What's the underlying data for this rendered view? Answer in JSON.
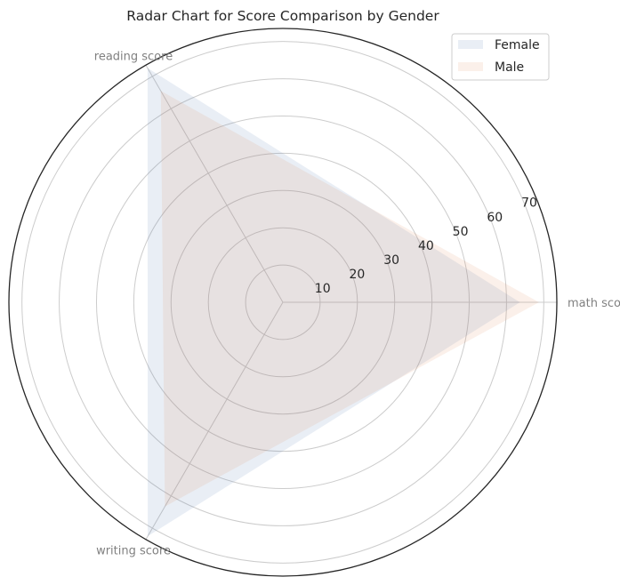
{
  "chart_data": {
    "type": "radar",
    "title": "Radar Chart for Score Comparison by Gender",
    "categories": [
      "math score",
      "reading score",
      "writing score"
    ],
    "series": [
      {
        "name": "Female",
        "values": [
          63.6,
          72.6,
          72.5
        ],
        "color": "#4c72b0"
      },
      {
        "name": "Male",
        "values": [
          68.7,
          65.5,
          63.3
        ],
        "color": "#dd8452"
      }
    ],
    "r_ticks": [
      10,
      20,
      30,
      40,
      50,
      60,
      70
    ],
    "r_max": 73.5,
    "grid": true,
    "legend_position": "top-right"
  }
}
